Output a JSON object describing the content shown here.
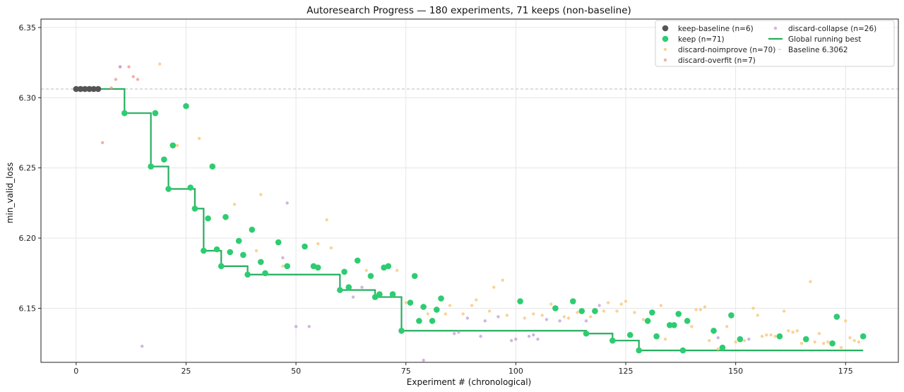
{
  "chart_data": {
    "type": "scatter",
    "title": "Autoresearch Progress — 180 experiments, 71 keeps (non-baseline)",
    "xlabel": "Experiment # (chronological)",
    "ylabel": "min_valid_loss",
    "xlim": [
      -8,
      187
    ],
    "ylim": [
      6.1115,
      6.356
    ],
    "xticks": [
      0,
      25,
      50,
      75,
      100,
      125,
      150,
      175
    ],
    "yticks": [
      6.15,
      6.2,
      6.25,
      6.3,
      6.35
    ],
    "ytick_labels": [
      "6.15",
      "6.20",
      "6.25",
      "6.30",
      "6.35"
    ],
    "grid": true,
    "legend_position": "top-right",
    "baseline": {
      "value": 6.3062,
      "label": "Baseline 6.3062",
      "color": "#bbbbbb"
    },
    "series": [
      {
        "name": "keep-baseline (n=6)",
        "kind": "points",
        "size": "large",
        "color": "#555555",
        "points": [
          [
            0,
            6.3062
          ],
          [
            1,
            6.3062
          ],
          [
            2,
            6.3062
          ],
          [
            3,
            6.3062
          ],
          [
            4,
            6.3062
          ],
          [
            5,
            6.3062
          ]
        ]
      },
      {
        "name": "keep (n=71)",
        "kind": "points",
        "size": "large",
        "color": "#2ecc71",
        "points": [
          [
            11,
            6.289
          ],
          [
            17,
            6.251
          ],
          [
            18,
            6.289
          ],
          [
            20,
            6.256
          ],
          [
            21,
            6.235
          ],
          [
            22,
            6.266
          ],
          [
            25,
            6.294
          ],
          [
            26,
            6.236
          ],
          [
            27,
            6.221
          ],
          [
            29,
            6.191
          ],
          [
            30,
            6.214
          ],
          [
            31,
            6.251
          ],
          [
            32,
            6.192
          ],
          [
            33,
            6.18
          ],
          [
            34,
            6.215
          ],
          [
            35,
            6.19
          ],
          [
            37,
            6.198
          ],
          [
            38,
            6.188
          ],
          [
            39,
            6.174
          ],
          [
            40,
            6.206
          ],
          [
            42,
            6.183
          ],
          [
            43,
            6.175
          ],
          [
            46,
            6.197
          ],
          [
            48,
            6.18
          ],
          [
            52,
            6.194
          ],
          [
            54,
            6.18
          ],
          [
            55,
            6.179
          ],
          [
            60,
            6.163
          ],
          [
            61,
            6.176
          ],
          [
            62,
            6.165
          ],
          [
            64,
            6.184
          ],
          [
            67,
            6.173
          ],
          [
            68,
            6.158
          ],
          [
            69,
            6.16
          ],
          [
            70,
            6.179
          ],
          [
            71,
            6.18
          ],
          [
            72,
            6.16
          ],
          [
            74,
            6.134
          ],
          [
            76,
            6.154
          ],
          [
            77,
            6.173
          ],
          [
            78,
            6.141
          ],
          [
            79,
            6.151
          ],
          [
            81,
            6.141
          ],
          [
            82,
            6.149
          ],
          [
            83,
            6.157
          ],
          [
            101,
            6.155
          ],
          [
            109,
            6.15
          ],
          [
            113,
            6.155
          ],
          [
            115,
            6.148
          ],
          [
            116,
            6.132
          ],
          [
            118,
            6.148
          ],
          [
            122,
            6.127
          ],
          [
            126,
            6.131
          ],
          [
            128,
            6.12
          ],
          [
            130,
            6.141
          ],
          [
            131,
            6.147
          ],
          [
            132,
            6.13
          ],
          [
            135,
            6.138
          ],
          [
            136,
            6.138
          ],
          [
            137,
            6.146
          ],
          [
            138,
            6.12
          ],
          [
            139,
            6.141
          ],
          [
            145,
            6.134
          ],
          [
            147,
            6.122
          ],
          [
            149,
            6.145
          ],
          [
            151,
            6.128
          ],
          [
            160,
            6.13
          ],
          [
            166,
            6.128
          ],
          [
            172,
            6.125
          ],
          [
            173,
            6.144
          ],
          [
            179,
            6.13
          ]
        ]
      },
      {
        "name": "discard-noimprove (n=70)",
        "kind": "points",
        "size": "small",
        "color": "#f8c471",
        "points": [
          [
            19,
            6.324
          ],
          [
            23,
            6.266
          ],
          [
            28,
            6.271
          ],
          [
            36,
            6.224
          ],
          [
            41,
            6.191
          ],
          [
            42,
            6.231
          ],
          [
            47,
            6.18
          ],
          [
            55,
            6.196
          ],
          [
            57,
            6.213
          ],
          [
            58,
            6.193
          ],
          [
            66,
            6.177
          ],
          [
            73,
            6.177
          ],
          [
            75,
            6.154
          ],
          [
            80,
            6.146
          ],
          [
            84,
            6.146
          ],
          [
            85,
            6.152
          ],
          [
            88,
            6.146
          ],
          [
            90,
            6.152
          ],
          [
            91,
            6.156
          ],
          [
            94,
            6.148
          ],
          [
            95,
            6.165
          ],
          [
            97,
            6.17
          ],
          [
            98,
            6.145
          ],
          [
            102,
            6.143
          ],
          [
            104,
            6.146
          ],
          [
            106,
            6.145
          ],
          [
            108,
            6.153
          ],
          [
            111,
            6.144
          ],
          [
            112,
            6.143
          ],
          [
            114,
            6.147
          ],
          [
            117,
            6.144
          ],
          [
            120,
            6.148
          ],
          [
            121,
            6.154
          ],
          [
            123,
            6.148
          ],
          [
            124,
            6.153
          ],
          [
            125,
            6.155
          ],
          [
            127,
            6.147
          ],
          [
            129,
            6.142
          ],
          [
            133,
            6.152
          ],
          [
            134,
            6.128
          ],
          [
            140,
            6.137
          ],
          [
            141,
            6.149
          ],
          [
            142,
            6.149
          ],
          [
            143,
            6.151
          ],
          [
            144,
            6.127
          ],
          [
            146,
            6.121
          ],
          [
            148,
            6.137
          ],
          [
            150,
            6.126
          ],
          [
            152,
            6.127
          ],
          [
            154,
            6.15
          ],
          [
            155,
            6.145
          ],
          [
            156,
            6.13
          ],
          [
            157,
            6.131
          ],
          [
            158,
            6.131
          ],
          [
            159,
            6.13
          ],
          [
            161,
            6.148
          ],
          [
            162,
            6.134
          ],
          [
            163,
            6.133
          ],
          [
            164,
            6.134
          ],
          [
            165,
            6.125
          ],
          [
            167,
            6.169
          ],
          [
            168,
            6.126
          ],
          [
            169,
            6.132
          ],
          [
            170,
            6.125
          ],
          [
            171,
            6.126
          ],
          [
            174,
            6.122
          ],
          [
            175,
            6.141
          ],
          [
            176,
            6.129
          ],
          [
            177,
            6.127
          ],
          [
            178,
            6.126
          ]
        ]
      },
      {
        "name": "discard-overfit (n=7)",
        "kind": "points",
        "size": "small",
        "color": "#f1948a",
        "points": [
          [
            6,
            6.268
          ],
          [
            8,
            6.307
          ],
          [
            9,
            6.313
          ],
          [
            10,
            6.322
          ],
          [
            12,
            6.322
          ],
          [
            13,
            6.315
          ],
          [
            14,
            6.313
          ]
        ]
      },
      {
        "name": "discard-collapse (n=26)",
        "kind": "points",
        "size": "small",
        "color": "#c39bd3",
        "points": [
          [
            10,
            6.322
          ],
          [
            15,
            6.123
          ],
          [
            48,
            6.225
          ],
          [
            47,
            6.186
          ],
          [
            50,
            6.137
          ],
          [
            53,
            6.137
          ],
          [
            63,
            6.158
          ],
          [
            65,
            6.165
          ],
          [
            79,
            6.113
          ],
          [
            86,
            6.132
          ],
          [
            87,
            6.133
          ],
          [
            89,
            6.143
          ],
          [
            92,
            6.13
          ],
          [
            93,
            6.141
          ],
          [
            96,
            6.144
          ],
          [
            99,
            6.127
          ],
          [
            100,
            6.128
          ],
          [
            103,
            6.13
          ],
          [
            104,
            6.131
          ],
          [
            105,
            6.128
          ],
          [
            107,
            6.142
          ],
          [
            110,
            6.141
          ],
          [
            116,
            6.141
          ],
          [
            119,
            6.152
          ],
          [
            146,
            6.129
          ],
          [
            153,
            6.128
          ]
        ]
      },
      {
        "name": "Global running best",
        "kind": "step",
        "color": "#27ae60",
        "points": [
          [
            0,
            6.3062
          ],
          [
            11,
            6.289
          ],
          [
            17,
            6.251
          ],
          [
            21,
            6.235
          ],
          [
            27,
            6.221
          ],
          [
            29,
            6.191
          ],
          [
            33,
            6.18
          ],
          [
            39,
            6.174
          ],
          [
            60,
            6.163
          ],
          [
            68,
            6.158
          ],
          [
            74,
            6.134
          ],
          [
            116,
            6.132
          ],
          [
            122,
            6.127
          ],
          [
            128,
            6.12
          ],
          [
            179,
            6.12
          ]
        ]
      }
    ]
  }
}
